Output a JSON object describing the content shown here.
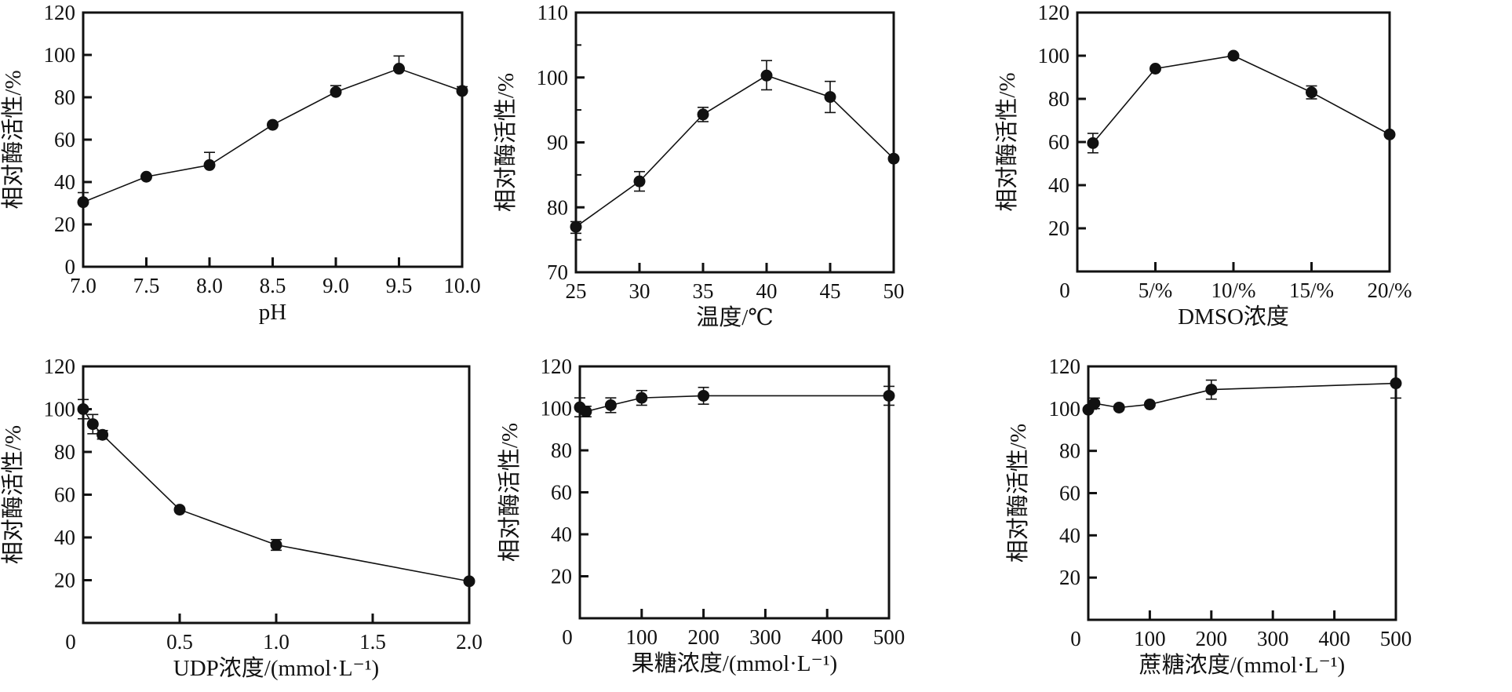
{
  "chart_data": [
    {
      "type": "line",
      "title": "",
      "xlabel": "pH",
      "ylabel": "相对酶活性/%",
      "xlim": [
        7.0,
        10.0
      ],
      "ylim": [
        0,
        120
      ],
      "xticks": [
        7.0,
        7.5,
        8.0,
        8.5,
        9.0,
        9.5,
        10.0
      ],
      "xtick_labels": [
        "7.0",
        "7.5",
        "8.0",
        "8.5",
        "9.0",
        "9.5",
        "10.0"
      ],
      "yticks": [
        0,
        20,
        40,
        60,
        80,
        100,
        120
      ],
      "ytick_labels": [
        "0",
        "20",
        "40",
        "60",
        "80",
        "100",
        "120"
      ],
      "origin_label": "",
      "x": [
        7.0,
        7.5,
        8.0,
        8.5,
        9.0,
        9.5,
        10.0
      ],
      "y": [
        30.5,
        42.5,
        48,
        67,
        82.5,
        93.5,
        83
      ],
      "err_up": [
        4.5,
        0,
        6,
        0,
        3,
        6,
        2
      ],
      "err_down": [
        0,
        0,
        0,
        0,
        0,
        0,
        0
      ]
    },
    {
      "type": "line",
      "title": "",
      "xlabel": "温度/℃",
      "ylabel": "相对酶活性/%",
      "xlim": [
        25,
        50
      ],
      "ylim": [
        70,
        110
      ],
      "xticks": [
        25,
        30,
        35,
        40,
        45,
        50
      ],
      "xtick_labels": [
        "25",
        "30",
        "35",
        "40",
        "45",
        "50"
      ],
      "yticks": [
        70,
        80,
        90,
        100,
        110
      ],
      "ytick_labels": [
        "70",
        "80",
        "90",
        "100",
        "110"
      ],
      "minor_yticks": [
        75,
        85,
        95,
        105
      ],
      "origin_label": "",
      "x": [
        25,
        30,
        35,
        40,
        45,
        50
      ],
      "y": [
        77,
        84,
        94.3,
        100.3,
        97,
        87.5
      ],
      "err_up": [
        0.8,
        1.5,
        1.1,
        2.3,
        2.4,
        0
      ],
      "err_down": [
        1.0,
        1.5,
        1.1,
        2.2,
        2.4,
        0
      ]
    },
    {
      "type": "line",
      "title": "",
      "xlabel": "DMSO浓度",
      "ylabel": "相对酶活性/%",
      "xlim": [
        0,
        20
      ],
      "ylim": [
        0,
        120
      ],
      "xticks": [
        5,
        10,
        15,
        20
      ],
      "xtick_labels": [
        "5/%",
        "10/%",
        "15/%",
        "20/%"
      ],
      "yticks": [
        20,
        40,
        60,
        80,
        100,
        120
      ],
      "ytick_labels": [
        "20",
        "40",
        "60",
        "80",
        "100",
        "120"
      ],
      "origin_label": "0",
      "x": [
        1,
        5,
        10,
        15,
        20
      ],
      "y": [
        59.5,
        94,
        100,
        83,
        63.5
      ],
      "err_up": [
        4.5,
        0,
        0,
        3,
        0
      ],
      "err_down": [
        4.5,
        0,
        0,
        3,
        0
      ]
    },
    {
      "type": "line",
      "title": "",
      "xlabel": "UDP浓度/(mmol·L⁻¹)",
      "ylabel": "相对酶活性/%",
      "xlim": [
        0,
        2.0
      ],
      "ylim": [
        0,
        120
      ],
      "xticks": [
        0.5,
        1.0,
        1.5,
        2.0
      ],
      "xtick_labels": [
        "0.5",
        "1.0",
        "1.5",
        "2.0"
      ],
      "yticks": [
        20,
        40,
        60,
        80,
        100,
        120
      ],
      "ytick_labels": [
        "20",
        "40",
        "60",
        "80",
        "100",
        "120"
      ],
      "origin_label": "0",
      "x": [
        0,
        0.05,
        0.1,
        0.5,
        1.0,
        2.0
      ],
      "y": [
        100,
        93,
        88,
        53,
        36.5,
        19.5
      ],
      "err_up": [
        4.5,
        4.5,
        2,
        0,
        2.5,
        0
      ],
      "err_down": [
        4.5,
        4.5,
        2,
        0,
        2.5,
        0
      ]
    },
    {
      "type": "line",
      "title": "",
      "xlabel": "果糖浓度/(mmol·L⁻¹)",
      "ylabel": "相对酶活性/%",
      "xlim": [
        0,
        500
      ],
      "ylim": [
        0,
        120
      ],
      "xticks": [
        100,
        200,
        300,
        400,
        500
      ],
      "xtick_labels": [
        "100",
        "200",
        "300",
        "400",
        "500"
      ],
      "yticks": [
        20,
        40,
        60,
        80,
        100,
        120
      ],
      "ytick_labels": [
        "20",
        "40",
        "60",
        "80",
        "100",
        "120"
      ],
      "origin_label": "0",
      "x": [
        0,
        10,
        50,
        100,
        200,
        500
      ],
      "y": [
        100.5,
        98.5,
        101.5,
        105,
        106,
        106
      ],
      "err_up": [
        4.5,
        2.5,
        3.5,
        3.5,
        4,
        4.5
      ],
      "err_down": [
        4.5,
        2.5,
        3.5,
        3.5,
        4,
        4.5
      ]
    },
    {
      "type": "line",
      "title": "",
      "xlabel": "蔗糖浓度/(mmol·L⁻¹)",
      "ylabel": "相对酶活性/%",
      "xlim": [
        0,
        500
      ],
      "ylim": [
        0,
        120
      ],
      "xticks": [
        100,
        200,
        300,
        400,
        500
      ],
      "xtick_labels": [
        "100",
        "200",
        "300",
        "400",
        "500"
      ],
      "yticks": [
        20,
        40,
        60,
        80,
        100,
        120
      ],
      "ytick_labels": [
        "20",
        "40",
        "60",
        "80",
        "100",
        "120"
      ],
      "origin_label": "0",
      "x": [
        0,
        10,
        50,
        100,
        200,
        500
      ],
      "y": [
        99.5,
        102.5,
        100.5,
        102,
        109,
        112
      ],
      "err_up": [
        0,
        2.5,
        0,
        0,
        4.5,
        0
      ],
      "err_down": [
        0,
        2.5,
        0,
        0,
        4.5,
        7
      ]
    }
  ]
}
